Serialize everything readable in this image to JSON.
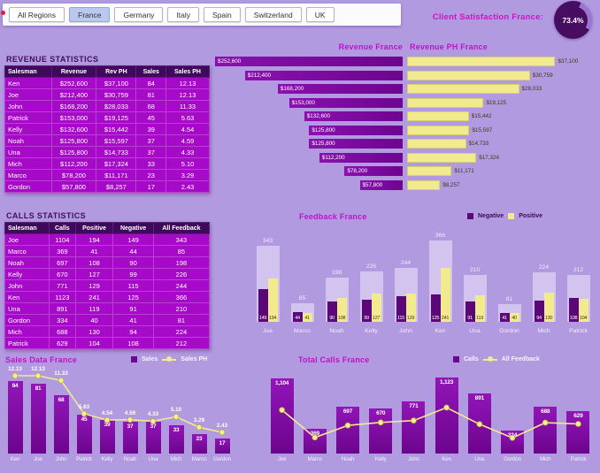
{
  "colors": {
    "background": "#b29ae1",
    "dark_purple_bar": "#6d058e",
    "magenta_table": "#a609c8",
    "header_purple": "#400a5c",
    "yellow": "#f2ea8f",
    "title_magenta": "#c013c9",
    "selected_filter": "#b9c8ee",
    "gauge_dark": "#470d63",
    "gauge_light": "#9a76d2"
  },
  "filters": {
    "items": [
      {
        "label": "All Regions",
        "selected": false
      },
      {
        "label": "France",
        "selected": true
      },
      {
        "label": "Germany",
        "selected": false
      },
      {
        "label": "Italy",
        "selected": false
      },
      {
        "label": "Spain",
        "selected": false
      },
      {
        "label": "Switzerland",
        "selected": false
      },
      {
        "label": "UK",
        "selected": false
      }
    ]
  },
  "satisfaction": {
    "label": "Client Satisfaction France:",
    "value": "73.4%",
    "pct": 73.4
  },
  "revenue_table": {
    "title": "REVENUE STATISTICS",
    "headers": [
      "Salesman",
      "Revenue",
      "Rev PH",
      "Sales",
      "Sales PH"
    ],
    "rows": [
      [
        "Ken",
        "$252,600",
        "$37,100",
        "84",
        "12.13"
      ],
      [
        "Joe",
        "$212,400",
        "$30,759",
        "81",
        "12.13"
      ],
      [
        "John",
        "$168,200",
        "$28,033",
        "68",
        "11.33"
      ],
      [
        "Patrick",
        "$153,000",
        "$19,125",
        "45",
        "5.63"
      ],
      [
        "Kelly",
        "$132,600",
        "$15,442",
        "39",
        "4.54"
      ],
      [
        "Noah",
        "$125,800",
        "$15,597",
        "37",
        "4.59"
      ],
      [
        "Una",
        "$125,800",
        "$14,733",
        "37",
        "4.33"
      ],
      [
        "Mich",
        "$112,200",
        "$17,324",
        "33",
        "5.10"
      ],
      [
        "Marco",
        "$78,200",
        "$11,171",
        "23",
        "3.29"
      ],
      [
        "Gordon",
        "$57,800",
        "$8,257",
        "17",
        "2.43"
      ]
    ]
  },
  "calls_table": {
    "title": "CALLS STATISTICS",
    "headers": [
      "Salesman",
      "Calls",
      "Positive",
      "Negative",
      "All Feedback"
    ],
    "rows": [
      [
        "Joe",
        "1104",
        "194",
        "149",
        "343"
      ],
      [
        "Marco",
        "369",
        "41",
        "44",
        "85"
      ],
      [
        "Noah",
        "697",
        "108",
        "90",
        "198"
      ],
      [
        "Kelly",
        "670",
        "127",
        "99",
        "226"
      ],
      [
        "John",
        "771",
        "129",
        "115",
        "244"
      ],
      [
        "Ken",
        "1123",
        "241",
        "125",
        "366"
      ],
      [
        "Una",
        "891",
        "119",
        "91",
        "210"
      ],
      [
        "Gordon",
        "334",
        "40",
        "41",
        "81"
      ],
      [
        "Mich",
        "688",
        "130",
        "94",
        "224"
      ],
      [
        "Patrick",
        "629",
        "104",
        "108",
        "212"
      ]
    ]
  },
  "chart_data": [
    {
      "id": "revenue_france",
      "type": "bar",
      "orientation": "horizontal-right-aligned",
      "title": "Revenue France",
      "categories": [
        "Ken",
        "Joe",
        "John",
        "Patrick",
        "Kelly",
        "Noah",
        "Una",
        "Mich",
        "Marco",
        "Gordon"
      ],
      "values": [
        252600,
        212400,
        168200,
        153000,
        132600,
        125800,
        125800,
        112200,
        78200,
        57800
      ],
      "labels": [
        "$252,600",
        "$212,400",
        "$168,200",
        "$153,000",
        "$132,600",
        "$125,800",
        "$125,800",
        "$112,200",
        "$78,200",
        "$57,800"
      ],
      "xlim": [
        0,
        252600
      ]
    },
    {
      "id": "revenue_ph_france",
      "type": "bar",
      "orientation": "horizontal-left-aligned",
      "title": "Revenue PH France",
      "categories": [
        "Ken",
        "Joe",
        "John",
        "Patrick",
        "Kelly",
        "Noah",
        "Una",
        "Mich",
        "Marco",
        "Gordon"
      ],
      "values": [
        37100,
        30759,
        28033,
        19125,
        15442,
        15597,
        14733,
        17324,
        11171,
        8257
      ],
      "labels": [
        "$37,100",
        "$30,759",
        "$28,033",
        "$19,125",
        "$15,442",
        "$15,597",
        "$14,733",
        "$17,324",
        "$11,171",
        "$8,257"
      ],
      "xlim": [
        0,
        37100
      ]
    },
    {
      "id": "feedback_france",
      "type": "bar",
      "variant": "grouped",
      "title": "Feedback France",
      "legend": [
        "Negative",
        "Positive"
      ],
      "legend_position": "top-right",
      "categories": [
        "Joe",
        "Marco",
        "Noah",
        "Kelly",
        "John",
        "Ken",
        "Una",
        "Gordon",
        "Mich",
        "Patrick"
      ],
      "series": [
        {
          "name": "Negative",
          "values": [
            149,
            44,
            90,
            99,
            115,
            125,
            91,
            41,
            94,
            108
          ]
        },
        {
          "name": "Positive",
          "values": [
            194,
            41,
            108,
            127,
            129,
            241,
            119,
            40,
            130,
            104
          ]
        },
        {
          "name": "All Feedback",
          "values": [
            343,
            85,
            198,
            226,
            244,
            366,
            210,
            81,
            224,
            212
          ]
        }
      ],
      "ylim": [
        0,
        400
      ]
    },
    {
      "id": "sales_data_france",
      "type": "bar+line",
      "title": "Sales Data France",
      "categories": [
        "Ken",
        "Joe",
        "John",
        "Patrick",
        "Kelly",
        "Noah",
        "Una",
        "Mich",
        "Marco",
        "Gordon"
      ],
      "series": [
        {
          "name": "Sales",
          "type": "bar",
          "values": [
            84,
            81,
            68,
            45,
            39,
            37,
            37,
            33,
            23,
            17
          ],
          "labels": [
            "84",
            "81",
            "68",
            "45",
            "39",
            "37",
            "37",
            "33",
            "23",
            "17"
          ]
        },
        {
          "name": "Sales PH",
          "type": "line",
          "values": [
            12.13,
            12.13,
            11.33,
            5.63,
            4.54,
            4.59,
            4.33,
            5.1,
            3.29,
            2.43
          ],
          "labels": [
            "12.13",
            "12.13",
            "11.33",
            "5.63",
            "4.54",
            "4.59",
            "4.33",
            "5.10",
            "3.29",
            "2.43"
          ]
        }
      ]
    },
    {
      "id": "total_calls_france",
      "type": "bar+line",
      "title": "Total Calls France",
      "categories": [
        "Joe",
        "Marco",
        "Noah",
        "Kelly",
        "John",
        "Ken",
        "Una",
        "Gordon",
        "Mich",
        "Patrick"
      ],
      "series": [
        {
          "name": "Calls",
          "type": "bar",
          "values": [
            1104,
            369,
            697,
            670,
            771,
            1123,
            891,
            334,
            688,
            629
          ],
          "labels": [
            "1,104",
            "369",
            "697",
            "670",
            "771",
            "1,123",
            "891",
            "334",
            "688",
            "629"
          ]
        },
        {
          "name": "All Feedback",
          "type": "line",
          "values": [
            343,
            85,
            198,
            226,
            244,
            366,
            210,
            81,
            224,
            212
          ]
        }
      ]
    }
  ]
}
